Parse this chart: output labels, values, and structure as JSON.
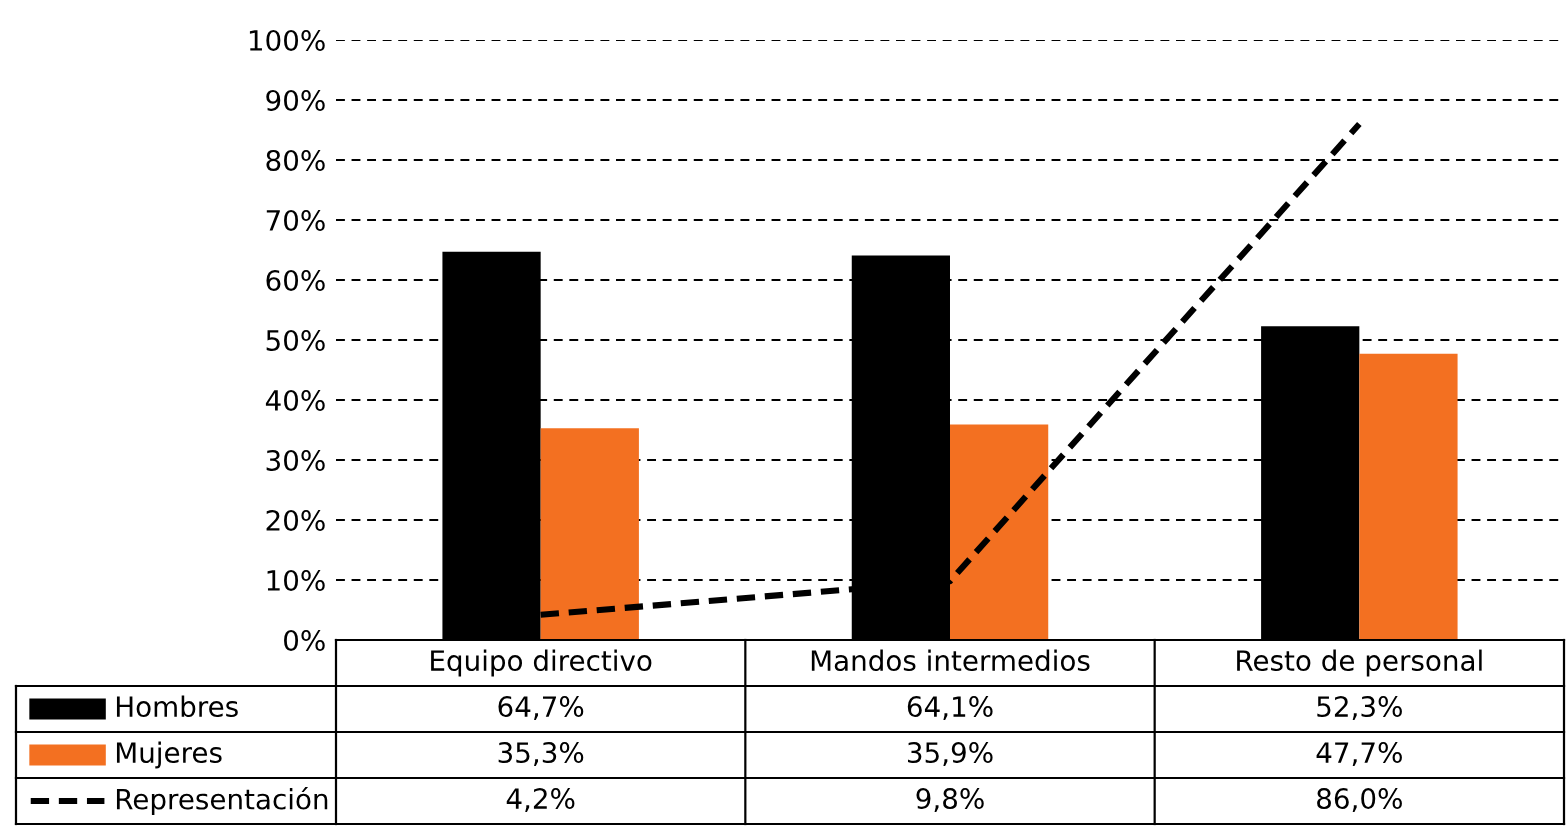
{
  "chart_data": {
    "type": "bar",
    "categories": [
      "Equipo directivo",
      "Mandos intermedios",
      "Resto de personal"
    ],
    "series": [
      {
        "name": "Hombres",
        "color": "#000000",
        "values": [
          64.7,
          64.1,
          52.3
        ],
        "value_labels": [
          "64,7%",
          "64,1%",
          "52,3%"
        ]
      },
      {
        "name": "Mujeres",
        "color": "#f37021",
        "values": [
          35.3,
          35.9,
          47.7
        ],
        "value_labels": [
          "35,3%",
          "35,9%",
          "47,7%"
        ]
      },
      {
        "name": "Representación",
        "type": "line",
        "color": "#000000",
        "line_style": "dashed",
        "values": [
          4.2,
          9.8,
          86.0
        ],
        "value_labels": [
          "4,2%",
          "9,8%",
          "86,0%"
        ]
      }
    ],
    "ylim": [
      0,
      100
    ],
    "yticks": [
      {
        "value": 0,
        "label": "0%"
      },
      {
        "value": 10,
        "label": "10%"
      },
      {
        "value": 20,
        "label": "20%"
      },
      {
        "value": 30,
        "label": "30%"
      },
      {
        "value": 40,
        "label": "40%"
      },
      {
        "value": 50,
        "label": "50%"
      },
      {
        "value": 60,
        "label": "60%"
      },
      {
        "value": 70,
        "label": "70%"
      },
      {
        "value": 80,
        "label": "80%"
      },
      {
        "value": 90,
        "label": "90%"
      },
      {
        "value": 100,
        "label": "100%"
      }
    ],
    "grid": "y",
    "legend": "bottom"
  }
}
